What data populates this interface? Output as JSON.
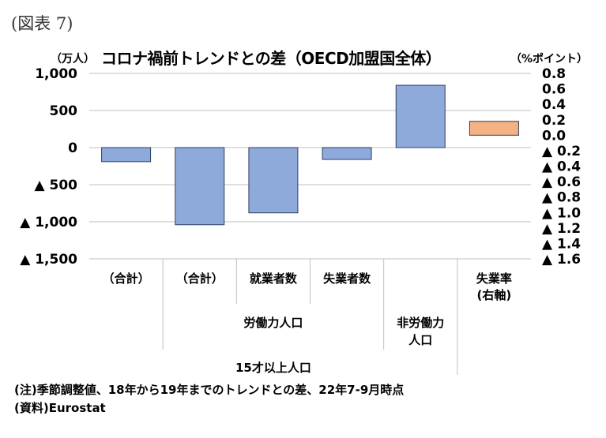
{
  "figure_label": "(図表 7)",
  "title": "コロナ禍前トレンドとの差（OECD加盟国全体）",
  "y_unit_left": "（万人）",
  "y_unit_right": "（%ポイント）",
  "note": "(注)季節調整値、18年から19年までのトレンドとの差、22年7-9月時点",
  "source": "(資料)Eurostat",
  "colors": {
    "bar_primary": "#8eaadb",
    "bar_secondary": "#f4b183",
    "bar_edge": "#2f3f5f",
    "grid": "#bfbfbf"
  },
  "chart_data": {
    "type": "bar",
    "categories": [
      "（合計）",
      "（合計）",
      "就業者数",
      "失業者数",
      "非労働力人口",
      "失業率（右軸）"
    ],
    "values": [
      -190,
      -1040,
      -880,
      -160,
      840,
      0.18
    ],
    "axis": [
      "left",
      "left",
      "left",
      "left",
      "left",
      "right"
    ],
    "ylim": [
      -1500,
      1000
    ],
    "yticks": [
      1000,
      500,
      0,
      -500,
      -1000,
      -1500
    ],
    "ytick_labels": [
      "1,000",
      "500",
      "0",
      "▲ 500",
      "▲ 1,000",
      "▲ 1,500"
    ],
    "y2lim": [
      -1.6,
      0.8
    ],
    "y2ticks": [
      0.8,
      0.6,
      0.4,
      0.2,
      0.0,
      -0.2,
      -0.4,
      -0.6,
      -0.8,
      -1.0,
      -1.2,
      -1.4,
      -1.6
    ],
    "y2tick_labels": [
      "0.8",
      "0.6",
      "0.4",
      "0.2",
      "0.0",
      "▲ 0.2",
      "▲ 0.4",
      "▲ 0.6",
      "▲ 0.8",
      "▲ 1.0",
      "▲ 1.2",
      "▲ 1.4",
      "▲ 1.6"
    ],
    "grid": true,
    "category_groups": {
      "level1": [
        {
          "lines": [
            "（合計）"
          ]
        },
        {
          "lines": [
            "（合計）"
          ]
        },
        {
          "lines": [
            "就業者数"
          ]
        },
        {
          "lines": [
            "失業者数"
          ]
        },
        {
          "lines": []
        },
        {
          "lines": [
            "失業率",
            "(右軸)"
          ]
        }
      ],
      "level2": [
        {
          "label": "労働力人口"
        },
        {
          "label": "非労働力",
          "label2": "人口"
        }
      ],
      "level3": {
        "label": "15才以上人口"
      }
    }
  }
}
